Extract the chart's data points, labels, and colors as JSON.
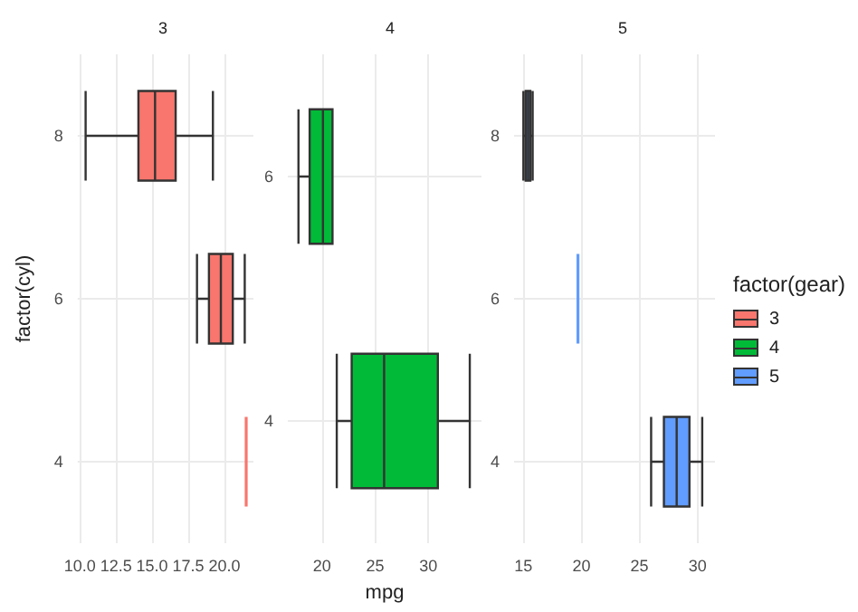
{
  "chart_data": [
    {
      "type": "box",
      "title": "3",
      "ylabel": "factor(cyl)",
      "orientation": "horizontal",
      "categories": [
        "8",
        "6",
        "4"
      ],
      "xlim": [
        9.85,
        22
      ],
      "xticks": [
        {
          "value": 10,
          "label": "10.0"
        },
        {
          "value": 12.5,
          "label": "12.5"
        },
        {
          "value": 15,
          "label": "15.0"
        },
        {
          "value": 17.5,
          "label": "17.5"
        },
        {
          "value": 20,
          "label": "20.0"
        }
      ],
      "grid": true,
      "legend": "right",
      "series": [
        {
          "name": "3",
          "color": "#f8766d",
          "boxes": [
            {
              "low": 10.4,
              "q1": 14.05,
              "median": 15.2,
              "q3": 16.625,
              "high": 19.2
            },
            {
              "low": 18.1,
              "q1": 18.925,
              "median": 19.75,
              "q3": 20.575,
              "high": 21.4
            },
            {
              "low": 21.5,
              "q1": 21.5,
              "median": 21.5,
              "q3": 21.5,
              "high": 21.5
            }
          ]
        }
      ]
    },
    {
      "type": "box",
      "title": "4",
      "xlabel": "mpg",
      "orientation": "horizontal",
      "categories": [
        "6",
        "4"
      ],
      "xlim": [
        16.8,
        35
      ],
      "xticks": [
        20,
        25,
        30
      ],
      "grid": true,
      "legend": "right",
      "series": [
        {
          "name": "4",
          "color": "#00ba38",
          "boxes": [
            {
              "low": 17.8,
              "q1": 18.85,
              "median": 20.1,
              "q3": 21,
              "high": 21
            },
            {
              "low": 21.4,
              "q1": 22.8,
              "median": 25.85,
              "q3": 30.9,
              "high": 33.9
            }
          ]
        }
      ]
    },
    {
      "type": "box",
      "title": "5",
      "legend_title": "factor(gear)",
      "orientation": "horizontal",
      "categories": [
        "8",
        "6",
        "4"
      ],
      "xlim": [
        14.2,
        31.5
      ],
      "xticks": [
        15,
        20,
        25,
        30
      ],
      "grid": true,
      "legend": "right",
      "series": [
        {
          "name": "5",
          "color": "#619cff",
          "boxes": [
            {
              "low": 15,
              "q1": 15.2,
              "median": 15.4,
              "q3": 15.6,
              "high": 15.8
            },
            {
              "low": 19.7,
              "q1": 19.7,
              "median": 19.7,
              "q3": 19.7,
              "high": 19.7
            },
            {
              "low": 26,
              "q1": 27.1,
              "median": 28.2,
              "q3": 29.3,
              "high": 30.4
            }
          ]
        }
      ]
    }
  ]
}
